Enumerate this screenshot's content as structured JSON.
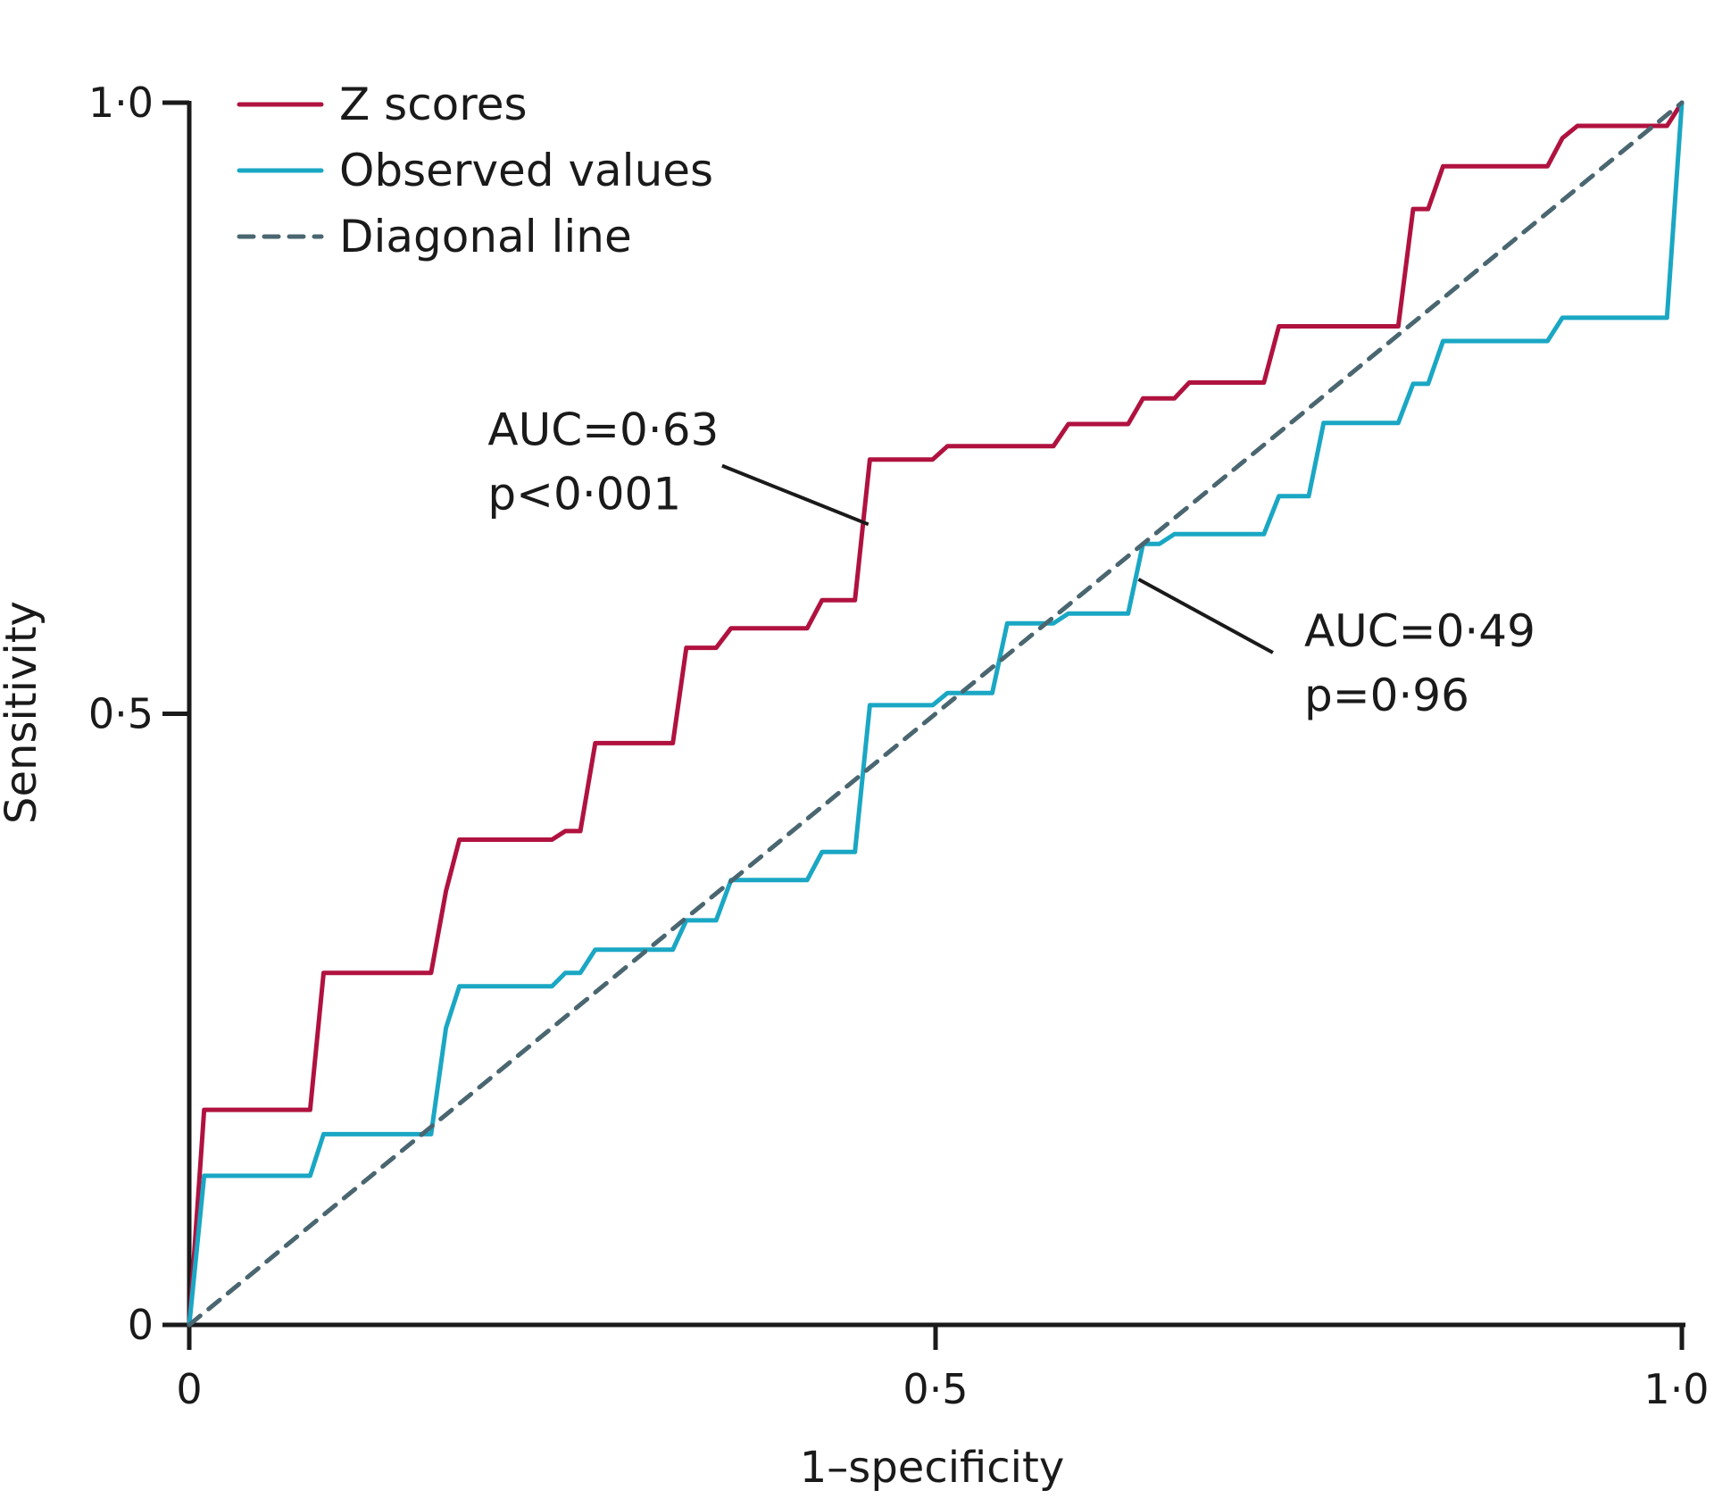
{
  "chart_data": {
    "type": "line",
    "title": "",
    "xlabel": "1–specificity",
    "ylabel": "Sensitivity",
    "xlim": [
      0,
      1
    ],
    "ylim": [
      0,
      1
    ],
    "x_ticks": [
      0,
      0.5,
      1.0
    ],
    "x_tick_labels": [
      "0",
      "0·5",
      "1·0"
    ],
    "y_ticks": [
      0,
      0.5,
      1.0
    ],
    "y_tick_labels": [
      "0",
      "0·5",
      "1·0"
    ],
    "grid": false,
    "legend_position": "top-left",
    "series": [
      {
        "name": "Z scores",
        "color": "#b0123f",
        "dash": "solid",
        "points": [
          [
            0,
            0
          ],
          [
            0.01,
            0.176
          ],
          [
            0.081,
            0.176
          ],
          [
            0.09,
            0.288
          ],
          [
            0.162,
            0.288
          ],
          [
            0.172,
            0.355
          ],
          [
            0.181,
            0.397
          ],
          [
            0.243,
            0.397
          ],
          [
            0.252,
            0.404
          ],
          [
            0.262,
            0.404
          ],
          [
            0.272,
            0.476
          ],
          [
            0.324,
            0.476
          ],
          [
            0.333,
            0.554
          ],
          [
            0.353,
            0.554
          ],
          [
            0.363,
            0.57
          ],
          [
            0.414,
            0.57
          ],
          [
            0.424,
            0.593
          ],
          [
            0.446,
            0.593
          ],
          [
            0.456,
            0.708
          ],
          [
            0.498,
            0.708
          ],
          [
            0.508,
            0.719
          ],
          [
            0.579,
            0.719
          ],
          [
            0.589,
            0.737
          ],
          [
            0.629,
            0.737
          ],
          [
            0.639,
            0.758
          ],
          [
            0.66,
            0.758
          ],
          [
            0.67,
            0.771
          ],
          [
            0.72,
            0.771
          ],
          [
            0.73,
            0.817
          ],
          [
            0.81,
            0.817
          ],
          [
            0.82,
            0.913
          ],
          [
            0.83,
            0.913
          ],
          [
            0.84,
            0.948
          ],
          [
            0.91,
            0.948
          ],
          [
            0.92,
            0.971
          ],
          [
            0.93,
            0.981
          ],
          [
            0.99,
            0.981
          ],
          [
            1.0,
            1.0
          ]
        ]
      },
      {
        "name": "Observed values",
        "color": "#1aa7c4",
        "dash": "solid",
        "points": [
          [
            0,
            0
          ],
          [
            0.01,
            0.122
          ],
          [
            0.081,
            0.122
          ],
          [
            0.09,
            0.156
          ],
          [
            0.162,
            0.156
          ],
          [
            0.172,
            0.243
          ],
          [
            0.181,
            0.277
          ],
          [
            0.243,
            0.277
          ],
          [
            0.252,
            0.288
          ],
          [
            0.262,
            0.288
          ],
          [
            0.272,
            0.307
          ],
          [
            0.324,
            0.307
          ],
          [
            0.333,
            0.331
          ],
          [
            0.353,
            0.331
          ],
          [
            0.363,
            0.364
          ],
          [
            0.414,
            0.364
          ],
          [
            0.424,
            0.387
          ],
          [
            0.446,
            0.387
          ],
          [
            0.456,
            0.507
          ],
          [
            0.498,
            0.507
          ],
          [
            0.508,
            0.517
          ],
          [
            0.538,
            0.517
          ],
          [
            0.548,
            0.574
          ],
          [
            0.579,
            0.574
          ],
          [
            0.589,
            0.582
          ],
          [
            0.629,
            0.582
          ],
          [
            0.639,
            0.639
          ],
          [
            0.65,
            0.639
          ],
          [
            0.66,
            0.647
          ],
          [
            0.72,
            0.647
          ],
          [
            0.73,
            0.678
          ],
          [
            0.75,
            0.678
          ],
          [
            0.76,
            0.738
          ],
          [
            0.81,
            0.738
          ],
          [
            0.82,
            0.77
          ],
          [
            0.83,
            0.77
          ],
          [
            0.84,
            0.805
          ],
          [
            0.91,
            0.805
          ],
          [
            0.92,
            0.824
          ],
          [
            0.99,
            0.824
          ],
          [
            1.0,
            1.0
          ]
        ]
      },
      {
        "name": "Diagonal line",
        "color": "#4a6670",
        "dash": "dashed",
        "points": [
          [
            0,
            0
          ],
          [
            1.0,
            1.0
          ]
        ]
      }
    ],
    "annotations": [
      {
        "lines": [
          "AUC=0·63",
          "p<0·001"
        ],
        "series": "Z scores",
        "anchor": [
          0.455,
          0.655
        ],
        "text_at": [
          0.2,
          0.72
        ],
        "leader_from": [
          0.357,
          0.703
        ]
      },
      {
        "lines": [
          "AUC=0·49",
          "p=0·96"
        ],
        "series": "Observed values",
        "anchor": [
          0.636,
          0.61
        ],
        "text_at": [
          0.747,
          0.555
        ],
        "leader_from": [
          0.726,
          0.55
        ]
      }
    ]
  }
}
